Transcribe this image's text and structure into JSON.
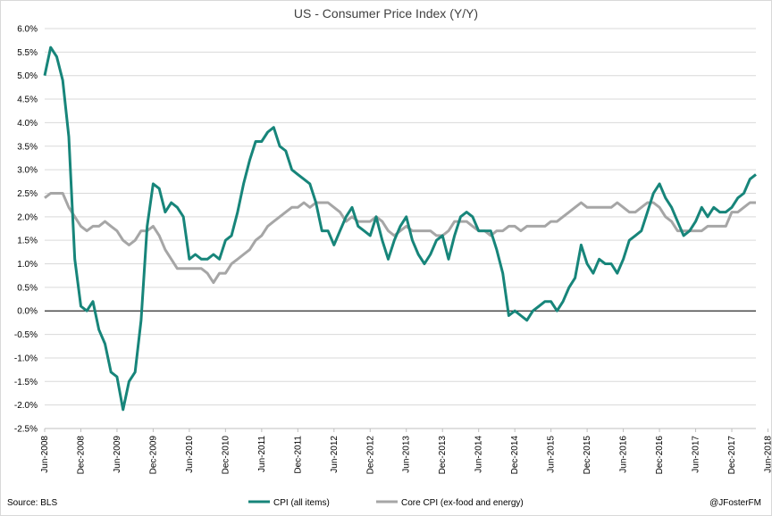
{
  "chart_data": {
    "type": "line",
    "title": "US - Consumer Price Index (Y/Y)",
    "xlabel": "",
    "ylabel": "",
    "ylim": [
      -2.5,
      6.0
    ],
    "y_ticks": [
      "6.0%",
      "5.5%",
      "5.0%",
      "4.5%",
      "4.0%",
      "3.5%",
      "3.0%",
      "2.5%",
      "2.0%",
      "1.5%",
      "1.0%",
      "0.5%",
      "0.0%",
      "-0.5%",
      "-1.0%",
      "-1.5%",
      "-2.0%",
      "-2.5%"
    ],
    "x_tick_labels": [
      "Jun-2008",
      "Dec-2008",
      "Jun-2009",
      "Dec-2009",
      "Jun-2010",
      "Dec-2010",
      "Jun-2011",
      "Dec-2011",
      "Jun-2012",
      "Dec-2012",
      "Jun-2013",
      "Dec-2013",
      "Jun-2014",
      "Dec-2014",
      "Jun-2015",
      "Dec-2015",
      "Jun-2016",
      "Dec-2016",
      "Jun-2017",
      "Dec-2017",
      "Jun-2018"
    ],
    "x_start": "Jun-2008",
    "x_frequency": "monthly",
    "grid": true,
    "legend_position": "bottom",
    "series": [
      {
        "name": "CPI (all items)",
        "color": "#17857a",
        "values": [
          5.0,
          5.6,
          5.4,
          4.9,
          3.7,
          1.1,
          0.1,
          0.0,
          0.2,
          -0.4,
          -0.7,
          -1.3,
          -1.4,
          -2.1,
          -1.5,
          -1.3,
          -0.2,
          1.8,
          2.7,
          2.6,
          2.1,
          2.3,
          2.2,
          2.0,
          1.1,
          1.2,
          1.1,
          1.1,
          1.2,
          1.1,
          1.5,
          1.6,
          2.1,
          2.7,
          3.2,
          3.6,
          3.6,
          3.8,
          3.9,
          3.5,
          3.4,
          3.0,
          2.9,
          2.8,
          2.7,
          2.3,
          1.7,
          1.7,
          1.4,
          1.7,
          2.0,
          2.2,
          1.8,
          1.7,
          1.6,
          2.0,
          1.5,
          1.1,
          1.5,
          1.8,
          2.0,
          1.5,
          1.2,
          1.0,
          1.2,
          1.5,
          1.6,
          1.1,
          1.6,
          2.0,
          2.1,
          2.0,
          1.7,
          1.7,
          1.7,
          1.3,
          0.8,
          -0.1,
          0.0,
          -0.1,
          -0.2,
          0.0,
          0.1,
          0.2,
          0.2,
          0.0,
          0.2,
          0.5,
          0.7,
          1.4,
          1.0,
          0.8,
          1.1,
          1.0,
          1.0,
          0.8,
          1.1,
          1.5,
          1.6,
          1.7,
          2.1,
          2.5,
          2.7,
          2.4,
          2.2,
          1.9,
          1.6,
          1.7,
          1.9,
          2.2,
          2.0,
          2.2,
          2.1,
          2.1,
          2.2,
          2.4,
          2.5,
          2.8,
          2.9
        ]
      },
      {
        "name": "Core CPI (ex-food and energy)",
        "color": "#a6a6a6",
        "values": [
          2.4,
          2.5,
          2.5,
          2.5,
          2.2,
          2.0,
          1.8,
          1.7,
          1.8,
          1.8,
          1.9,
          1.8,
          1.7,
          1.5,
          1.4,
          1.5,
          1.7,
          1.7,
          1.8,
          1.6,
          1.3,
          1.1,
          0.9,
          0.9,
          0.9,
          0.9,
          0.9,
          0.8,
          0.6,
          0.8,
          0.8,
          1.0,
          1.1,
          1.2,
          1.3,
          1.5,
          1.6,
          1.8,
          1.9,
          2.0,
          2.1,
          2.2,
          2.2,
          2.3,
          2.2,
          2.3,
          2.3,
          2.3,
          2.2,
          2.1,
          1.9,
          2.0,
          1.9,
          1.9,
          1.9,
          2.0,
          1.9,
          1.7,
          1.6,
          1.7,
          1.8,
          1.7,
          1.7,
          1.7,
          1.7,
          1.6,
          1.6,
          1.7,
          1.9,
          1.9,
          1.9,
          1.8,
          1.7,
          1.7,
          1.6,
          1.7,
          1.7,
          1.8,
          1.8,
          1.7,
          1.8,
          1.8,
          1.8,
          1.8,
          1.9,
          1.9,
          2.0,
          2.1,
          2.2,
          2.3,
          2.2,
          2.2,
          2.2,
          2.2,
          2.2,
          2.3,
          2.2,
          2.1,
          2.1,
          2.2,
          2.3,
          2.3,
          2.2,
          2.0,
          1.9,
          1.7,
          1.7,
          1.7,
          1.7,
          1.7,
          1.8,
          1.8,
          1.8,
          1.8,
          2.1,
          2.1,
          2.2,
          2.3,
          2.3
        ]
      }
    ]
  },
  "footer": {
    "source": "Source: BLS",
    "credit": "@JFosterFM"
  }
}
